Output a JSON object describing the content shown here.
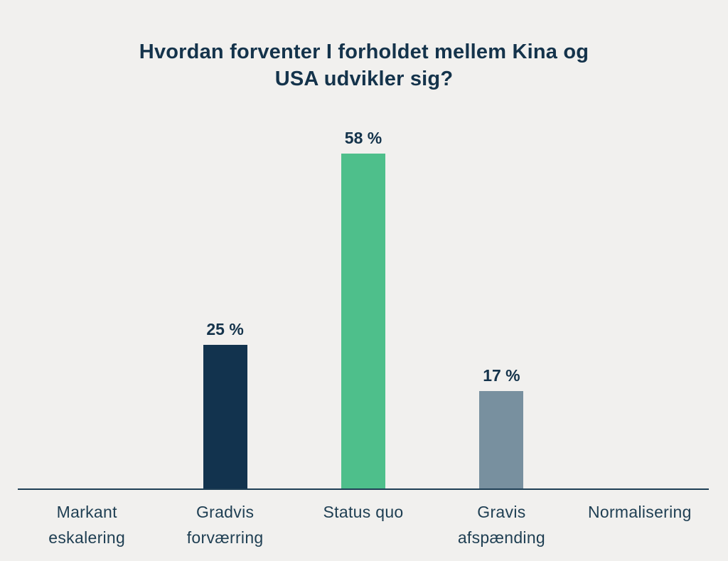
{
  "title": "Hvordan forventer I forholdet mellem Kina og USA udvikler sig?",
  "title_lines": [
    "Hvordan forventer I forholdet mellem Kina og",
    "USA udvikler sig?"
  ],
  "colors": {
    "background": "#F1F0EE",
    "title_text": "#14334B",
    "value_label_text": "#14334B",
    "category_label_text": "#1E3E52",
    "axis_line": "#1E3E55",
    "bar_navy": "#12334E",
    "bar_green": "#4EBF8B",
    "bar_slate": "#78909F"
  },
  "chart_data": {
    "type": "bar",
    "title": "Hvordan forventer I forholdet mellem Kina og USA udvikler sig?",
    "xlabel": "",
    "ylabel": "",
    "unit": "%",
    "ylim": [
      0,
      65
    ],
    "grid": false,
    "legend": false,
    "categories": [
      "Markant eskalering",
      "Gradvis forværring",
      "Status quo",
      "Gravis afspænding",
      "Normalisering"
    ],
    "values": [
      0,
      25,
      58,
      17,
      0
    ],
    "points": [
      {
        "category": "Markant eskalering",
        "category_lines": [
          "Markant",
          "eskalering"
        ],
        "value": 0,
        "label": null,
        "color": null
      },
      {
        "category": "Gradvis forværring",
        "category_lines": [
          "Gradvis",
          "forværring"
        ],
        "value": 25,
        "label": "25 %",
        "color": "#12334E"
      },
      {
        "category": "Status quo",
        "category_lines": [
          "Status quo"
        ],
        "value": 58,
        "label": "58 %",
        "color": "#4EBF8B"
      },
      {
        "category": "Gravis afspænding",
        "category_lines": [
          "Gravis",
          "afspænding"
        ],
        "value": 17,
        "label": "17 %",
        "color": "#78909F"
      },
      {
        "category": "Normalisering",
        "category_lines": [
          "Normalisering"
        ],
        "value": 0,
        "label": null,
        "color": null
      }
    ]
  }
}
